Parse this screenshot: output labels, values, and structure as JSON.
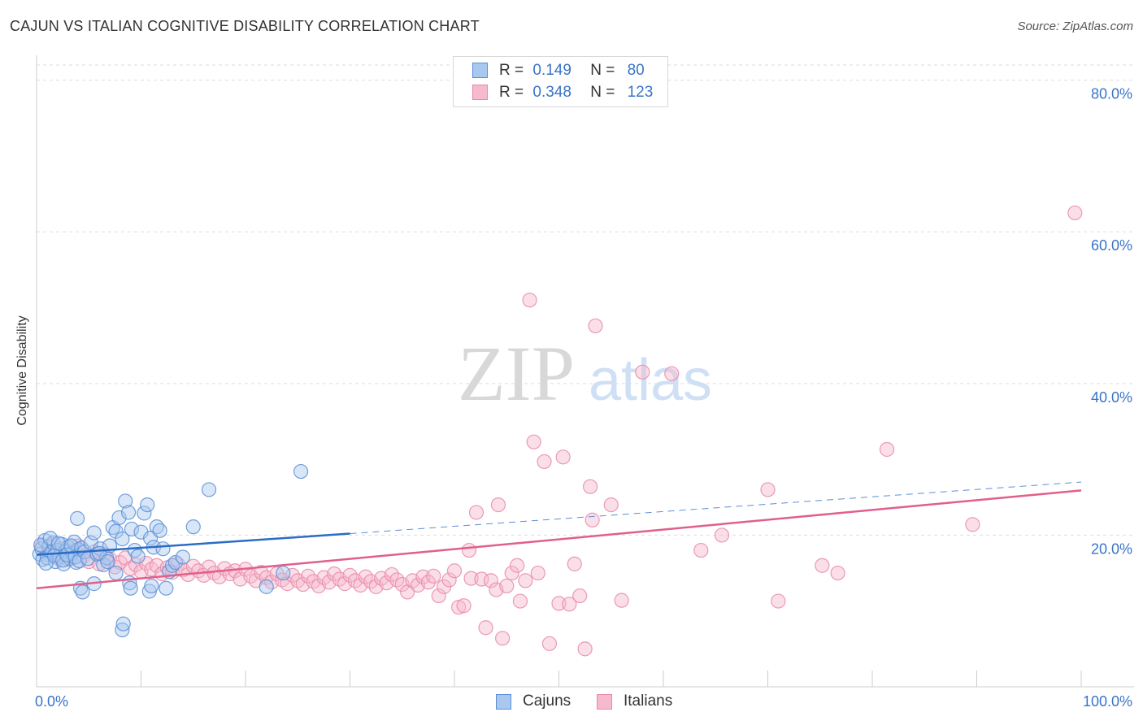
{
  "header": {
    "title": "CAJUN VS ITALIAN COGNITIVE DISABILITY CORRELATION CHART",
    "source": "Source: ZipAtlas.com"
  },
  "stats": {
    "cajuns": {
      "r_label": "R =",
      "r_value": "0.149",
      "n_label": "N =",
      "n_value": "80"
    },
    "italians": {
      "r_label": "R =",
      "r_value": "0.348",
      "n_label": "N =",
      "n_value": "123"
    }
  },
  "legend": {
    "cajuns": "Cajuns",
    "italians": "Italians"
  },
  "colors": {
    "cajun_fill": "#a9c8f0",
    "cajun_stroke": "#5b8fd6",
    "cajun_line": "#2b6cc4",
    "italian_fill": "#f7b9cc",
    "italian_stroke": "#e88aa8",
    "italian_line": "#e0608a",
    "tick_label": "#3a74c8",
    "grid": "#dddddd"
  },
  "watermark": {
    "zip": "ZIP",
    "atlas": "atlas"
  },
  "chart_data": {
    "type": "scatter",
    "title": "CAJUN VS ITALIAN COGNITIVE DISABILITY CORRELATION CHART",
    "ylabel": "Cognitive Disability",
    "xlabel": "",
    "xlim": [
      0,
      100
    ],
    "ylim": [
      0,
      82
    ],
    "x_tick_labels": [
      "0.0%",
      "100.0%"
    ],
    "y_ticks": [
      20,
      40,
      60,
      80
    ],
    "y_tick_labels": [
      "20.0%",
      "40.0%",
      "60.0%",
      "80.0%"
    ],
    "grid": "horizontal dashed",
    "legend_position": "bottom-center",
    "series": [
      {
        "name": "Cajuns",
        "r": 0.149,
        "n": 80,
        "trend": {
          "x": [
            0,
            30
          ],
          "y": [
            17.4,
            20.2
          ]
        },
        "trend_extension": {
          "x": [
            30,
            100
          ],
          "y": [
            20.2,
            27.0
          ]
        },
        "points": [
          [
            0.3,
            17.5
          ],
          [
            0.5,
            18.2
          ],
          [
            0.6,
            16.8
          ],
          [
            0.8,
            19.3
          ],
          [
            1.0,
            17.0
          ],
          [
            1.2,
            18.5
          ],
          [
            1.4,
            17.7
          ],
          [
            1.6,
            19.0
          ],
          [
            1.8,
            16.5
          ],
          [
            2.0,
            18.0
          ],
          [
            2.2,
            17.2
          ],
          [
            2.4,
            18.8
          ],
          [
            2.6,
            16.2
          ],
          [
            2.8,
            17.9
          ],
          [
            3.0,
            18.4
          ],
          [
            3.2,
            16.9
          ],
          [
            3.4,
            17.6
          ],
          [
            3.6,
            19.1
          ],
          [
            3.8,
            16.4
          ],
          [
            4.0,
            18.1
          ],
          [
            0.4,
            18.7
          ],
          [
            0.9,
            16.3
          ],
          [
            1.3,
            19.6
          ],
          [
            1.7,
            17.3
          ],
          [
            2.1,
            18.9
          ],
          [
            2.5,
            16.7
          ],
          [
            2.9,
            17.4
          ],
          [
            3.3,
            18.6
          ],
          [
            3.7,
            17.1
          ],
          [
            4.1,
            16.6
          ],
          [
            4.3,
            18.3
          ],
          [
            4.6,
            17.8
          ],
          [
            4.9,
            16.9
          ],
          [
            5.2,
            19.0
          ],
          [
            5.5,
            20.3
          ],
          [
            5.8,
            17.5
          ],
          [
            6.1,
            18.2
          ],
          [
            6.4,
            16.1
          ],
          [
            6.7,
            17.0
          ],
          [
            7.0,
            18.6
          ],
          [
            7.3,
            21.0
          ],
          [
            7.6,
            20.5
          ],
          [
            7.9,
            22.3
          ],
          [
            8.2,
            19.5
          ],
          [
            8.5,
            24.5
          ],
          [
            8.8,
            23.0
          ],
          [
            9.1,
            20.8
          ],
          [
            9.4,
            18.0
          ],
          [
            9.7,
            17.2
          ],
          [
            10.0,
            20.4
          ],
          [
            10.3,
            22.9
          ],
          [
            10.6,
            24.0
          ],
          [
            10.9,
            19.6
          ],
          [
            11.2,
            18.4
          ],
          [
            11.5,
            21.1
          ],
          [
            11.8,
            20.6
          ],
          [
            12.1,
            18.2
          ],
          [
            12.4,
            13.0
          ],
          [
            12.7,
            15.2
          ],
          [
            13.0,
            16.0
          ],
          [
            3.9,
            22.2
          ],
          [
            4.2,
            13.0
          ],
          [
            4.4,
            12.5
          ],
          [
            5.5,
            13.6
          ],
          [
            7.6,
            15.0
          ],
          [
            8.2,
            7.5
          ],
          [
            8.3,
            8.3
          ],
          [
            8.9,
            13.7
          ],
          [
            9.0,
            13.0
          ],
          [
            10.8,
            12.6
          ],
          [
            11.0,
            13.3
          ],
          [
            13.3,
            16.4
          ],
          [
            14.0,
            17.1
          ],
          [
            15.0,
            21.1
          ],
          [
            16.5,
            26.0
          ],
          [
            22.0,
            13.2
          ],
          [
            23.6,
            15.0
          ],
          [
            25.3,
            28.4
          ],
          [
            6.0,
            17.6
          ],
          [
            6.8,
            16.5
          ]
        ]
      },
      {
        "name": "Italians",
        "r": 0.348,
        "n": 123,
        "trend": {
          "x": [
            0,
            100
          ],
          "y": [
            13.0,
            25.9
          ]
        },
        "points": [
          [
            0.5,
            18.5
          ],
          [
            1.0,
            17.4
          ],
          [
            1.5,
            18.8
          ],
          [
            2.0,
            17.0
          ],
          [
            2.5,
            18.2
          ],
          [
            3.0,
            16.8
          ],
          [
            3.5,
            17.9
          ],
          [
            4.0,
            18.6
          ],
          [
            4.5,
            17.2
          ],
          [
            5.0,
            16.5
          ],
          [
            5.5,
            17.8
          ],
          [
            6.0,
            16.2
          ],
          [
            6.5,
            17.5
          ],
          [
            7.0,
            16.9
          ],
          [
            7.5,
            15.8
          ],
          [
            8.0,
            16.4
          ],
          [
            8.5,
            17.0
          ],
          [
            9.0,
            15.6
          ],
          [
            9.5,
            16.1
          ],
          [
            10.0,
            15.2
          ],
          [
            10.5,
            16.3
          ],
          [
            11.0,
            15.5
          ],
          [
            11.5,
            16.0
          ],
          [
            12.0,
            14.9
          ],
          [
            12.5,
            15.7
          ],
          [
            13.0,
            15.1
          ],
          [
            13.5,
            16.2
          ],
          [
            14.0,
            15.4
          ],
          [
            14.5,
            14.8
          ],
          [
            15.0,
            15.9
          ],
          [
            15.5,
            15.3
          ],
          [
            16.0,
            14.7
          ],
          [
            16.5,
            15.8
          ],
          [
            17.0,
            15.0
          ],
          [
            17.5,
            14.5
          ],
          [
            18.0,
            15.6
          ],
          [
            18.5,
            14.9
          ],
          [
            19.0,
            15.3
          ],
          [
            19.5,
            14.2
          ],
          [
            20.0,
            15.5
          ],
          [
            20.5,
            14.6
          ],
          [
            21.0,
            14.0
          ],
          [
            21.5,
            15.1
          ],
          [
            22.0,
            14.4
          ],
          [
            22.5,
            13.8
          ],
          [
            23.0,
            14.9
          ],
          [
            23.5,
            14.1
          ],
          [
            24.0,
            13.6
          ],
          [
            24.5,
            14.7
          ],
          [
            25.0,
            14.0
          ],
          [
            25.5,
            13.5
          ],
          [
            26.0,
            14.6
          ],
          [
            26.5,
            13.9
          ],
          [
            27.0,
            13.3
          ],
          [
            27.5,
            14.4
          ],
          [
            28.0,
            13.8
          ],
          [
            28.5,
            14.9
          ],
          [
            29.0,
            14.2
          ],
          [
            29.5,
            13.6
          ],
          [
            30.0,
            14.7
          ],
          [
            30.5,
            14.0
          ],
          [
            31.0,
            13.4
          ],
          [
            31.5,
            14.5
          ],
          [
            32.0,
            13.9
          ],
          [
            32.5,
            13.2
          ],
          [
            33.0,
            14.3
          ],
          [
            33.5,
            13.7
          ],
          [
            34.0,
            14.8
          ],
          [
            34.5,
            14.1
          ],
          [
            35.0,
            13.5
          ],
          [
            35.5,
            12.5
          ],
          [
            36.0,
            14.0
          ],
          [
            36.5,
            13.4
          ],
          [
            37.0,
            14.5
          ],
          [
            37.5,
            13.8
          ],
          [
            38.0,
            14.6
          ],
          [
            38.5,
            12.0
          ],
          [
            39.0,
            13.2
          ],
          [
            39.5,
            14.1
          ],
          [
            40.0,
            15.3
          ],
          [
            40.4,
            10.5
          ],
          [
            40.9,
            10.7
          ],
          [
            41.4,
            18.0
          ],
          [
            41.6,
            14.3
          ],
          [
            42.1,
            23.0
          ],
          [
            42.6,
            14.2
          ],
          [
            43.0,
            7.8
          ],
          [
            43.5,
            14.0
          ],
          [
            44.0,
            12.8
          ],
          [
            44.2,
            24.0
          ],
          [
            44.6,
            6.4
          ],
          [
            45.0,
            13.3
          ],
          [
            45.5,
            15.0
          ],
          [
            46.0,
            16.0
          ],
          [
            46.3,
            11.3
          ],
          [
            46.8,
            14.0
          ],
          [
            47.2,
            51.0
          ],
          [
            47.6,
            32.3
          ],
          [
            48.0,
            15.0
          ],
          [
            48.6,
            29.7
          ],
          [
            49.1,
            5.7
          ],
          [
            50.0,
            11.0
          ],
          [
            50.4,
            30.3
          ],
          [
            51.0,
            10.9
          ],
          [
            51.5,
            16.2
          ],
          [
            52.0,
            12.0
          ],
          [
            52.5,
            5.0
          ],
          [
            53.0,
            26.4
          ],
          [
            53.2,
            22.0
          ],
          [
            53.5,
            47.6
          ],
          [
            55.0,
            24.0
          ],
          [
            56.0,
            11.4
          ],
          [
            58.0,
            41.5
          ],
          [
            60.8,
            41.3
          ],
          [
            63.6,
            18.0
          ],
          [
            65.6,
            20.0
          ],
          [
            70.0,
            26.0
          ],
          [
            71.0,
            11.3
          ],
          [
            75.2,
            16.0
          ],
          [
            76.7,
            15.0
          ],
          [
            81.4,
            31.3
          ],
          [
            89.6,
            21.4
          ],
          [
            99.4,
            62.5
          ]
        ]
      }
    ]
  }
}
